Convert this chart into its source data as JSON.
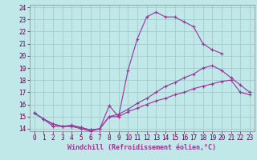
{
  "xlabel": "Windchill (Refroidissement éolien,°C)",
  "bg_color": "#c0e8e8",
  "grid_color": "#a0cccc",
  "line_color": "#993399",
  "marker": "+",
  "xlim": [
    -0.5,
    23.5
  ],
  "ylim": [
    13.8,
    24.2
  ],
  "xticks": [
    0,
    1,
    2,
    3,
    4,
    5,
    6,
    7,
    8,
    9,
    10,
    11,
    12,
    13,
    14,
    15,
    16,
    17,
    18,
    19,
    20,
    21,
    22,
    23
  ],
  "yticks": [
    14,
    15,
    16,
    17,
    18,
    19,
    20,
    21,
    22,
    23,
    24
  ],
  "line1_x": [
    0,
    1,
    2,
    3,
    4,
    5,
    6,
    7,
    8,
    9,
    10,
    11,
    12,
    13,
    14,
    15,
    16,
    17,
    18,
    19,
    20
  ],
  "line1_y": [
    15.3,
    14.8,
    14.2,
    14.2,
    14.2,
    14.0,
    13.8,
    14.0,
    15.9,
    15.0,
    18.8,
    21.4,
    23.2,
    23.6,
    23.2,
    23.2,
    22.8,
    22.4,
    21.0,
    20.5,
    20.2
  ],
  "line2_x": [
    0,
    1,
    2,
    3,
    4,
    5,
    6,
    7,
    8,
    9,
    10,
    11,
    12,
    13,
    14,
    15,
    16,
    17,
    18,
    19,
    20,
    21,
    22,
    23
  ],
  "line2_y": [
    15.3,
    14.8,
    14.4,
    14.2,
    14.2,
    14.1,
    13.9,
    14.0,
    15.0,
    15.2,
    15.6,
    16.1,
    16.5,
    17.0,
    17.5,
    17.8,
    18.2,
    18.5,
    19.0,
    19.2,
    18.8,
    18.2,
    17.6,
    17.0
  ],
  "line3_x": [
    0,
    1,
    2,
    3,
    4,
    5,
    6,
    7,
    8,
    9,
    10,
    11,
    12,
    13,
    14,
    15,
    16,
    17,
    18,
    19,
    20,
    21,
    22,
    23
  ],
  "line3_y": [
    15.3,
    14.8,
    14.4,
    14.2,
    14.3,
    14.1,
    13.9,
    14.0,
    15.0,
    15.0,
    15.4,
    15.7,
    16.0,
    16.3,
    16.5,
    16.8,
    17.0,
    17.3,
    17.5,
    17.7,
    17.9,
    18.0,
    17.0,
    16.8
  ],
  "tick_fontsize": 5.5,
  "label_fontsize": 6.0,
  "marker_size": 2.5,
  "line_width": 0.8
}
